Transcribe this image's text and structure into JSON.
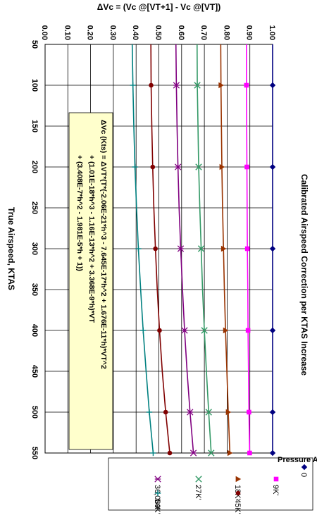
{
  "chart_data": {
    "type": "line",
    "title": "Calibrated Airspeed Correction per KTAS Increase",
    "xlabel": "True Airspeed, KTAS",
    "ylabel": "ΔVc = (Vc @[VT+1] - Vc @[VT])",
    "xlim": [
      50,
      550
    ],
    "ylim": [
      0.0,
      1.0
    ],
    "x_ticks": [
      "50",
      "100",
      "150",
      "200",
      "250",
      "300",
      "350",
      "400",
      "450",
      "500",
      "550"
    ],
    "y_ticks": [
      "0.00",
      "0.10",
      "0.20",
      "0.30",
      "0.40",
      "0.50",
      "0.60",
      "0.70",
      "0.80",
      "0.90",
      "1.00"
    ],
    "x": [
      50,
      100,
      150,
      200,
      250,
      300,
      350,
      400,
      450,
      500,
      550
    ],
    "grid": true,
    "legend_title": "Pressure Altitude",
    "legend_position": "right",
    "annotation": [
      "ΔVc (Kts) = ΔVT*(T*(-2.06E-21*h^3 - 7.645E-17*h^2 + 1.676E-11*h)*VT^2",
      "+ (1.01E-18*h^3 - 1.16E-13*h^2 + 3.368E-9*h)*VT",
      "+ (3.408E-7*h^2 - 1.981E-5*h + 1))"
    ],
    "series": [
      {
        "name": "0",
        "color": "#000080",
        "marker": "diamond",
        "values": [
          1.0,
          1.0,
          1.0,
          1.0,
          1.0,
          1.0,
          1.0,
          1.0,
          1.0,
          1.0,
          1.0
        ]
      },
      {
        "name": "9K'",
        "color": "#ff00ff",
        "marker": "square",
        "values": [
          0.885,
          0.885,
          0.886,
          0.887,
          0.888,
          0.889,
          0.891,
          0.892,
          0.894,
          0.896,
          0.899
        ]
      },
      {
        "name": "18K'",
        "color": "#993300",
        "marker": "triangle",
        "values": [
          0.772,
          0.773,
          0.775,
          0.777,
          0.78,
          0.784,
          0.788,
          0.793,
          0.799,
          0.805,
          0.812
        ]
      },
      {
        "name": "27K'",
        "color": "#339966",
        "marker": "x",
        "values": [
          0.668,
          0.669,
          0.672,
          0.675,
          0.68,
          0.686,
          0.692,
          0.7,
          0.709,
          0.719,
          0.73
        ]
      },
      {
        "name": "36,089'",
        "color": "#800080",
        "marker": "star",
        "values": [
          0.575,
          0.577,
          0.58,
          0.584,
          0.589,
          0.596,
          0.604,
          0.613,
          0.624,
          0.637,
          0.652
        ]
      },
      {
        "name": "45K'",
        "color": "#800000",
        "marker": "circle",
        "values": [
          0.465,
          0.466,
          0.469,
          0.473,
          0.478,
          0.485,
          0.493,
          0.503,
          0.515,
          0.53,
          0.548
        ]
      },
      {
        "name": "54K'",
        "color": "#008080",
        "marker": "plus",
        "values": [
          0.383,
          0.386,
          0.39,
          0.395,
          0.402,
          0.41,
          0.42,
          0.431,
          0.444,
          0.458,
          0.475
        ]
      }
    ]
  }
}
